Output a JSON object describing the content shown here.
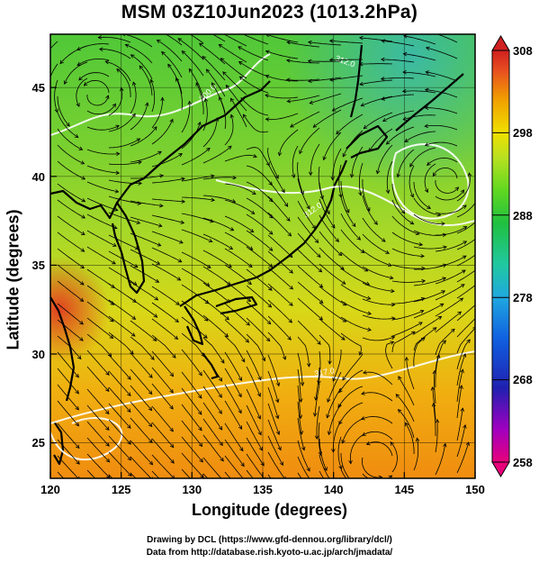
{
  "title": "MSM 03Z10Jun2023 (1013.2hPa)",
  "map": {
    "xlabel": "Longitude (degrees)",
    "ylabel": "Latitude  (degrees)",
    "lon_range": [
      120,
      150
    ],
    "lat_range": [
      23,
      48
    ],
    "lon_ticks": [
      "120",
      "125",
      "130",
      "135",
      "140",
      "145",
      "150"
    ],
    "lat_ticks": [
      "25",
      "30",
      "35",
      "40",
      "45"
    ],
    "contour_labels": [
      "300.0",
      "312.0",
      "317.0",
      "312.0"
    ],
    "grid": true
  },
  "colorbar": {
    "ticks": [
      "308",
      "298",
      "288",
      "278",
      "268",
      "258"
    ],
    "range": [
      258,
      308
    ],
    "colors": [
      "#e8007a",
      "#a000c0",
      "#2020b0",
      "#1060e0",
      "#20a8e0",
      "#20c8a0",
      "#20c040",
      "#60d820",
      "#b8e020",
      "#f0e000",
      "#f0a000",
      "#e85020",
      "#d02020"
    ]
  },
  "footer": {
    "line1": "Drawing by DCL (https://www.gfd-dennou.org/library/dcl/)",
    "line2": "Data from http://database.rish.kyoto-u.ac.jp/arch/jmadata/"
  }
}
